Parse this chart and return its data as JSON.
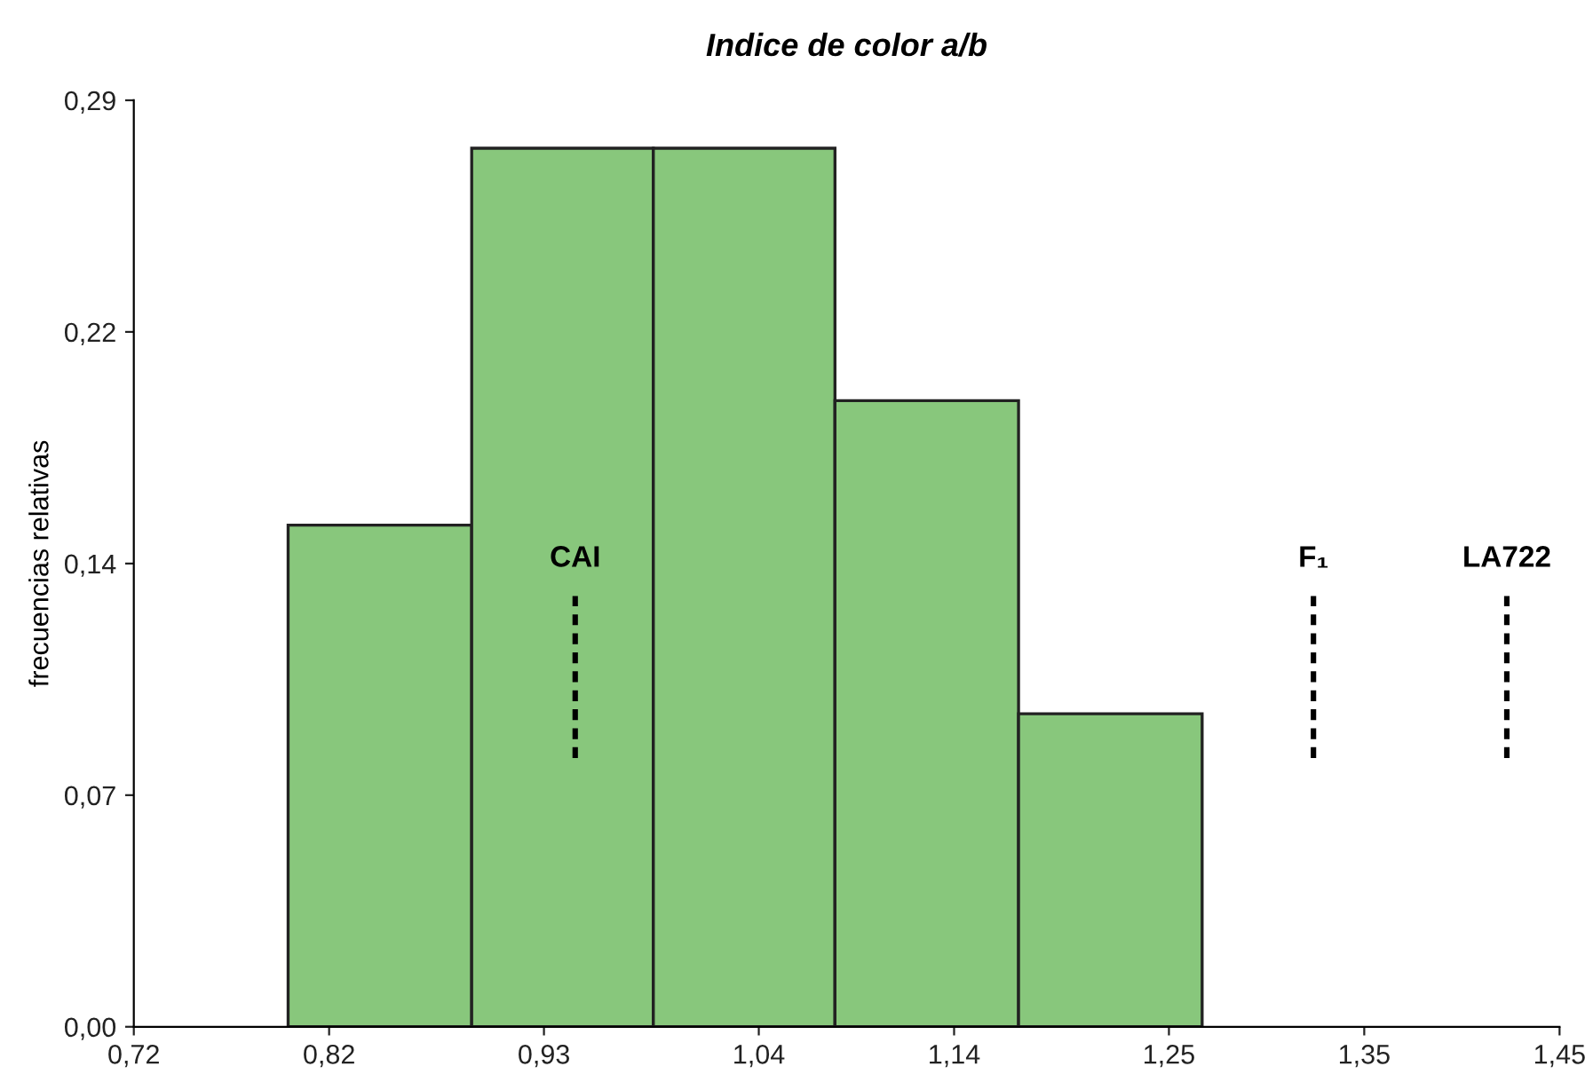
{
  "chart_data": {
    "type": "histogram",
    "title": "Indice de color a/b",
    "ylabel": "frecuencias relativas",
    "bins": [
      0.799,
      0.893,
      0.986,
      1.079,
      1.173,
      1.267
    ],
    "values": [
      0.157,
      0.275,
      0.275,
      0.196,
      0.098
    ],
    "color": "#88c77c",
    "xlim": [
      0.72,
      1.45
    ],
    "xticks": [
      {
        "value": 0.72,
        "label": "0,72"
      },
      {
        "value": 0.82,
        "label": "0,82"
      },
      {
        "value": 0.93,
        "label": "0,93"
      },
      {
        "value": 1.04,
        "label": "1,04"
      },
      {
        "value": 1.14,
        "label": "1,14"
      },
      {
        "value": 1.25,
        "label": "1,25"
      },
      {
        "value": 1.35,
        "label": "1,35"
      },
      {
        "value": 1.45,
        "label": "1,45"
      }
    ],
    "ylim": [
      0,
      0.29
    ],
    "yticks": [
      {
        "value": 0,
        "label": "0,00"
      },
      {
        "value": 0.0725,
        "label": "0,07"
      },
      {
        "value": 0.145,
        "label": "0,14"
      },
      {
        "value": 0.2175,
        "label": "0,22"
      },
      {
        "value": 0.29,
        "label": "0,29"
      }
    ],
    "ref_lines": [
      {
        "axis": "x",
        "value": 0.946,
        "label": "CAI",
        "line_style": "dashed",
        "color": "#000000"
      },
      {
        "axis": "x",
        "value": 1.324,
        "label": "F₁",
        "line_style": "dashed",
        "color": "#000000"
      },
      {
        "axis": "x",
        "value": 1.423,
        "label": "LA722",
        "line_style": "dashed",
        "color": "#000000"
      }
    ],
    "grid": false
  }
}
